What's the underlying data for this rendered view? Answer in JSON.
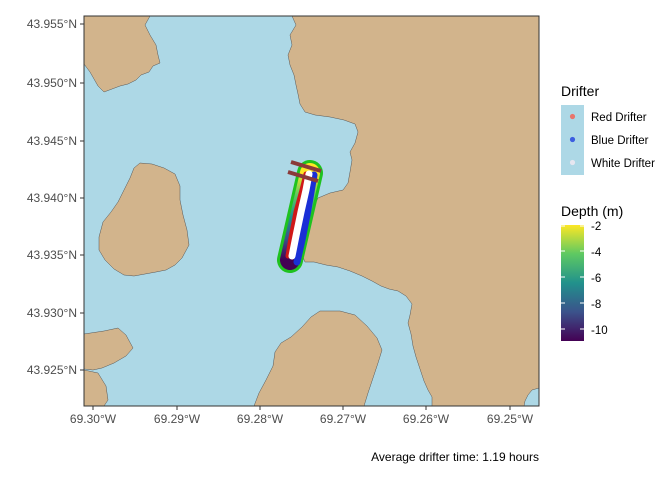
{
  "map": {
    "x_axis": {
      "ticks": [
        "69.30°W",
        "69.29°W",
        "69.28°W",
        "69.27°W",
        "69.26°W",
        "69.25°W"
      ]
    },
    "y_axis": {
      "ticks": [
        "43.955°N",
        "43.950°N",
        "43.945°N",
        "43.940°N",
        "43.935°N",
        "43.930°N",
        "43.925°N"
      ]
    },
    "water_color": "#add8e6",
    "land_color": "#d2b48c",
    "grid": false
  },
  "drifter_legend": {
    "title": "Drifter",
    "items": [
      {
        "label": "Red Drifter",
        "color": "#e8756d"
      },
      {
        "label": "Blue Drifter",
        "color": "#3c5ee0"
      },
      {
        "label": "White Drifter",
        "color": "#e6e6f0"
      }
    ]
  },
  "depth_legend": {
    "title": "Depth (m)",
    "ticks": [
      "-2",
      "-4",
      "-6",
      "-8",
      "-10"
    ],
    "palette": "viridis"
  },
  "caption": "Average drifter time: 1.19 hours"
}
